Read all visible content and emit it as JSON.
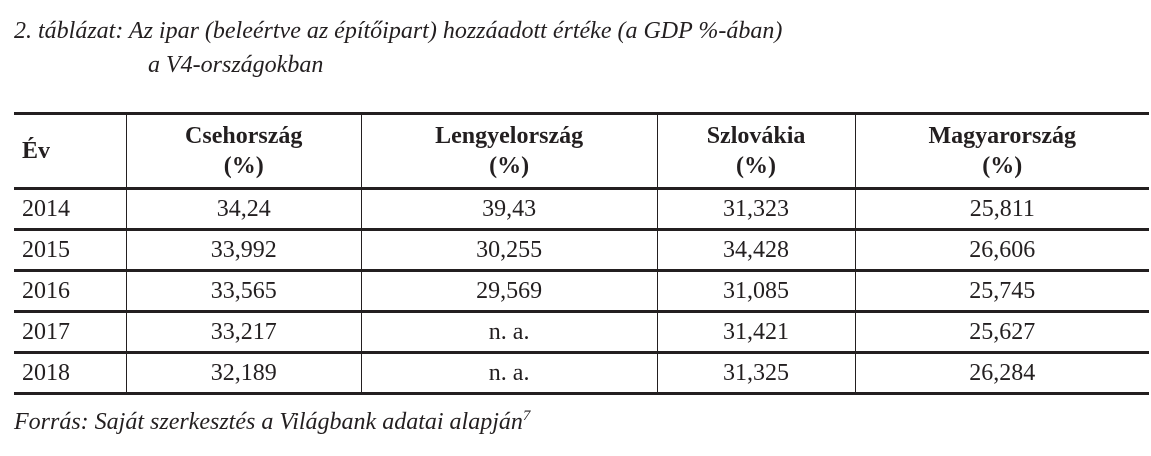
{
  "caption": {
    "line1": "2. táblázat: Az ipar (beleértve az építőipart) hozzáadott értéke (a GDP %-ában)",
    "line2": "a V4-országokban"
  },
  "table": {
    "headers": [
      {
        "name": "Év",
        "unit": ""
      },
      {
        "name": "Csehország",
        "unit": "(%)"
      },
      {
        "name": "Lengyelország",
        "unit": "(%)"
      },
      {
        "name": "Szlovákia",
        "unit": "(%)"
      },
      {
        "name": "Magyarország",
        "unit": "(%)"
      }
    ],
    "rows": [
      [
        "2014",
        "34,24",
        "39,43",
        "31,323",
        "25,811"
      ],
      [
        "2015",
        "33,992",
        "30,255",
        "34,428",
        "26,606"
      ],
      [
        "2016",
        "33,565",
        "29,569",
        "31,085",
        "25,745"
      ],
      [
        "2017",
        "33,217",
        "n. a.",
        "31,421",
        "25,627"
      ],
      [
        "2018",
        "32,189",
        "n. a.",
        "31,325",
        "26,284"
      ]
    ]
  },
  "source": {
    "text": "Forrás: Saját szerkesztés a Világbank adatai alapján",
    "footnote": "7"
  }
}
